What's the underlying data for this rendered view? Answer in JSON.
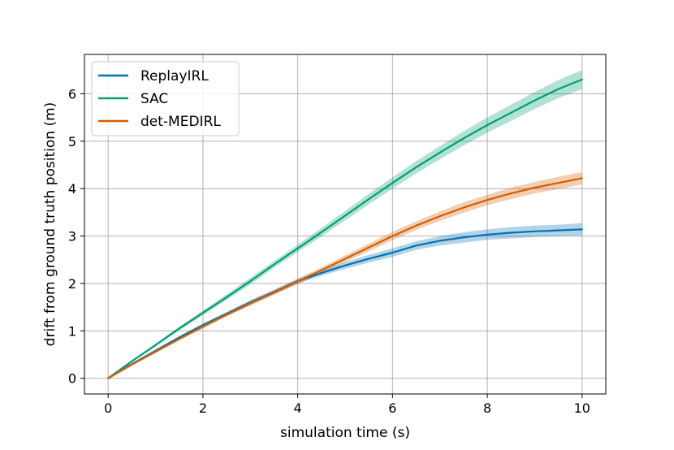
{
  "chart_data": {
    "type": "line",
    "title": "",
    "xlabel": "simulation time (s)",
    "ylabel": "drift from ground truth position (m)",
    "xlim": [
      -0.5,
      10.5
    ],
    "ylim": [
      -0.33,
      6.83
    ],
    "xticks": [
      0,
      2,
      4,
      6,
      8,
      10
    ],
    "yticks": [
      0,
      1,
      2,
      3,
      4,
      5,
      6
    ],
    "grid": true,
    "legend_position": "top-left",
    "series": [
      {
        "name": "ReplayIRL",
        "color": "#0072b2",
        "x": [
          0,
          0.5,
          1,
          1.5,
          2,
          2.5,
          3,
          3.5,
          4,
          4.5,
          5,
          5.5,
          6,
          6.5,
          7,
          7.5,
          8,
          8.5,
          9,
          9.5,
          10
        ],
        "y": [
          0,
          0.3,
          0.58,
          0.86,
          1.12,
          1.36,
          1.6,
          1.82,
          2.05,
          2.22,
          2.38,
          2.52,
          2.65,
          2.8,
          2.9,
          2.97,
          3.03,
          3.07,
          3.1,
          3.12,
          3.14
        ],
        "band": [
          0,
          0.02,
          0.03,
          0.03,
          0.04,
          0.04,
          0.05,
          0.05,
          0.05,
          0.06,
          0.07,
          0.08,
          0.09,
          0.09,
          0.1,
          0.11,
          0.11,
          0.12,
          0.12,
          0.12,
          0.13
        ]
      },
      {
        "name": "SAC",
        "color": "#009e73",
        "x": [
          0,
          0.5,
          1,
          1.5,
          2,
          2.5,
          3,
          3.5,
          4,
          4.5,
          5,
          5.5,
          6,
          6.5,
          7,
          7.5,
          8,
          8.5,
          9,
          9.5,
          10
        ],
        "y": [
          0,
          0.36,
          0.7,
          1.05,
          1.38,
          1.71,
          2.05,
          2.4,
          2.74,
          3.08,
          3.43,
          3.78,
          4.12,
          4.45,
          4.76,
          5.06,
          5.34,
          5.6,
          5.86,
          6.1,
          6.3
        ],
        "band": [
          0,
          0.02,
          0.03,
          0.04,
          0.05,
          0.06,
          0.07,
          0.07,
          0.08,
          0.09,
          0.1,
          0.11,
          0.12,
          0.13,
          0.14,
          0.15,
          0.16,
          0.17,
          0.18,
          0.19,
          0.2
        ]
      },
      {
        "name": "det-MEDIRL",
        "color": "#d55e00",
        "x": [
          0,
          0.5,
          1,
          1.5,
          2,
          2.5,
          3,
          3.5,
          4,
          4.5,
          5,
          5.5,
          6,
          6.5,
          7,
          7.5,
          8,
          8.5,
          9,
          9.5,
          10
        ],
        "y": [
          0,
          0.29,
          0.56,
          0.83,
          1.09,
          1.34,
          1.58,
          1.81,
          2.04,
          2.28,
          2.52,
          2.76,
          3.0,
          3.22,
          3.42,
          3.6,
          3.76,
          3.9,
          4.02,
          4.12,
          4.22
        ],
        "band": [
          0,
          0.02,
          0.03,
          0.03,
          0.04,
          0.04,
          0.05,
          0.05,
          0.06,
          0.06,
          0.07,
          0.08,
          0.09,
          0.09,
          0.1,
          0.11,
          0.11,
          0.12,
          0.12,
          0.13,
          0.13
        ]
      }
    ]
  }
}
